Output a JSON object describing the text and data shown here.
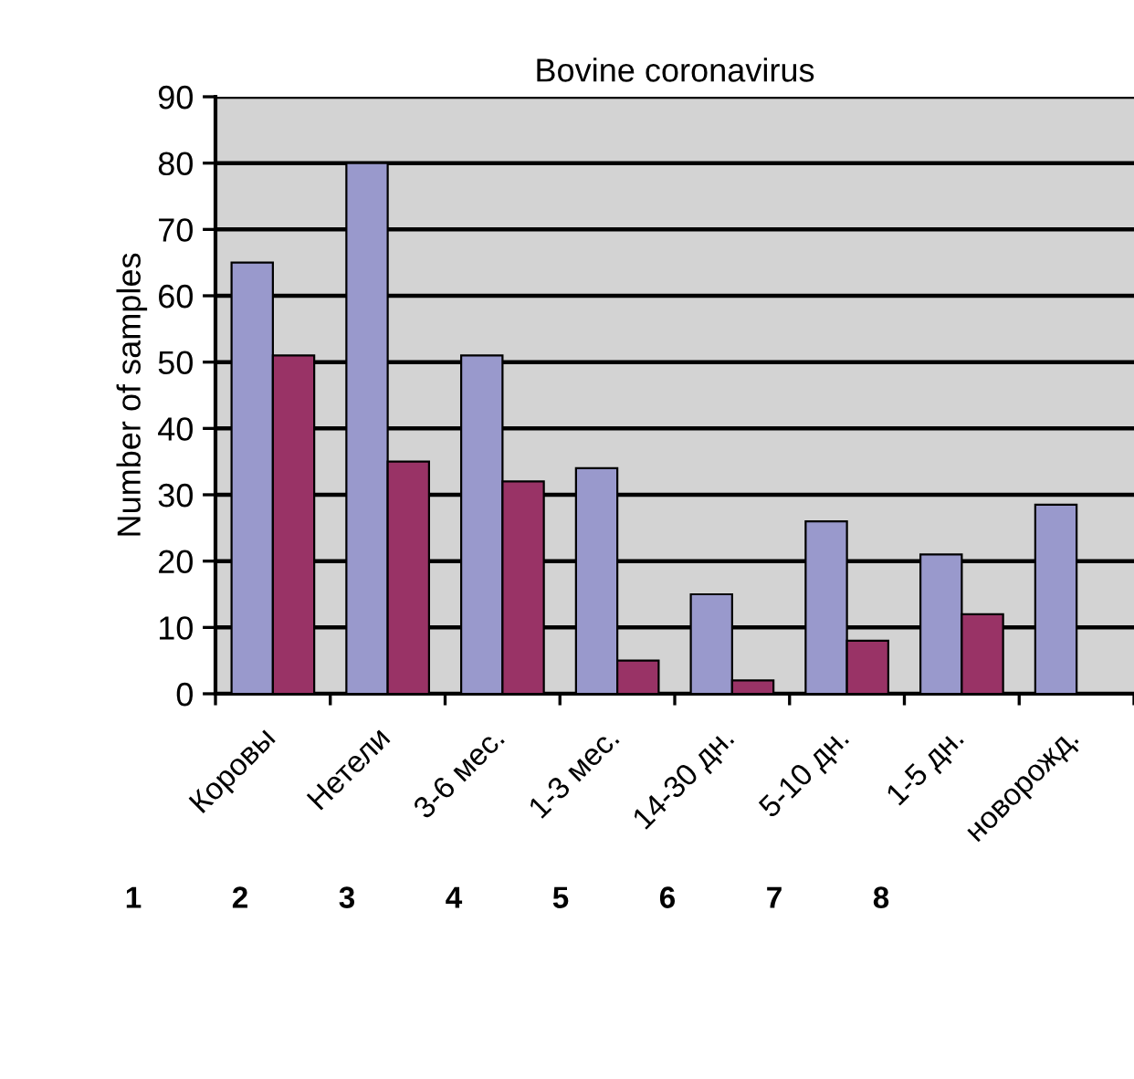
{
  "chart_data": {
    "type": "bar",
    "title": "Bovine coronavirus",
    "ylabel": "Number of samples",
    "categories": [
      "Коровы",
      "Нетели",
      "3-6 мес.",
      "1-3 мес.",
      "14-30 дн.",
      "5-10 дн.",
      "1-5 дн.",
      "новорожд."
    ],
    "series": [
      {
        "color": "#9999cc",
        "values": [
          65,
          80,
          51,
          34,
          15,
          26,
          21,
          28.5
        ]
      },
      {
        "color": "#993366",
        "values": [
          51,
          35,
          32,
          5,
          2,
          8,
          12,
          null
        ]
      }
    ],
    "ylim": [
      0,
      90
    ],
    "yticks": [
      0,
      10,
      20,
      30,
      40,
      50,
      60,
      70,
      80,
      90
    ],
    "grid": "y",
    "legend": false,
    "annotations": [
      "1",
      "2",
      "3",
      "4",
      "5",
      "6",
      "7",
      "8"
    ]
  }
}
